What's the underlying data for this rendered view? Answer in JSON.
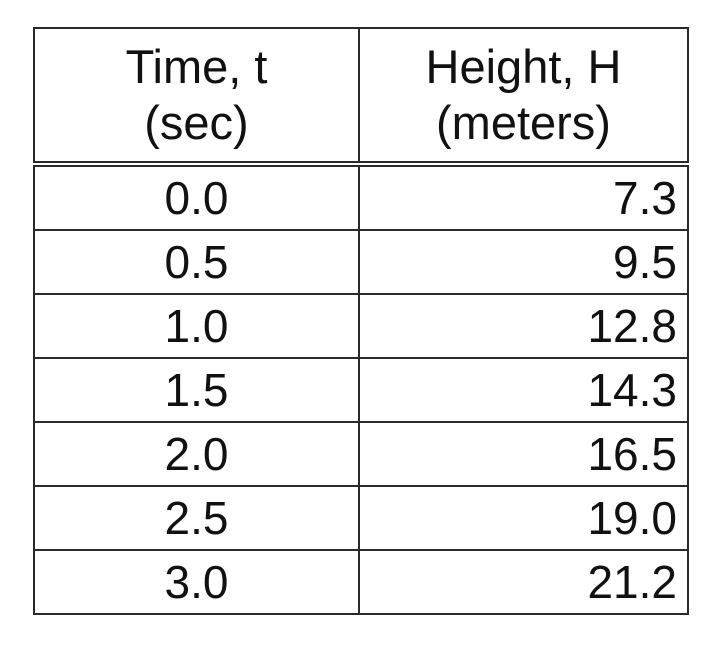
{
  "chart_data": {
    "type": "table",
    "columns": [
      {
        "line1": "Time, t",
        "line2": "(sec)"
      },
      {
        "line1": "Height, H",
        "line2": "(meters)"
      }
    ],
    "rows": [
      [
        "0.0",
        "7.3"
      ],
      [
        "0.5",
        "9.5"
      ],
      [
        "1.0",
        "12.8"
      ],
      [
        "1.5",
        "14.3"
      ],
      [
        "2.0",
        "16.5"
      ],
      [
        "2.5",
        "19.0"
      ],
      [
        "3.0",
        "21.2"
      ]
    ]
  }
}
